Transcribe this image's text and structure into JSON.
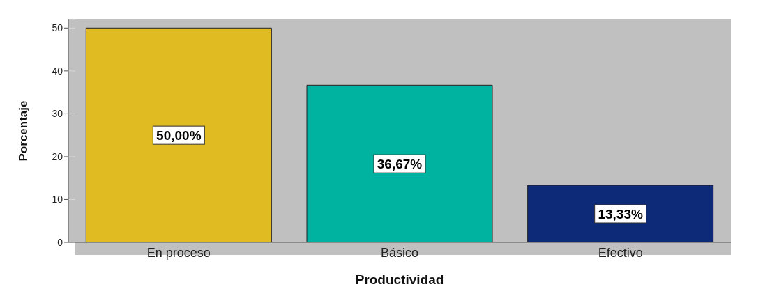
{
  "chart_data": {
    "type": "bar",
    "xlabel": "Productividad",
    "ylabel": "Porcentaje",
    "categories": [
      "En proceso",
      "Básico",
      "Efectivo"
    ],
    "values": [
      50,
      36.67,
      13.33
    ],
    "colors": [
      "#e0bb22",
      "#00b3a0",
      "#0c2a78"
    ],
    "value_labels": [
      "50,00%",
      "36,67%",
      "13,33%"
    ],
    "ylim": [
      0,
      52
    ],
    "yticks": [
      0,
      10,
      20,
      30,
      40,
      50
    ],
    "grid": "y"
  }
}
